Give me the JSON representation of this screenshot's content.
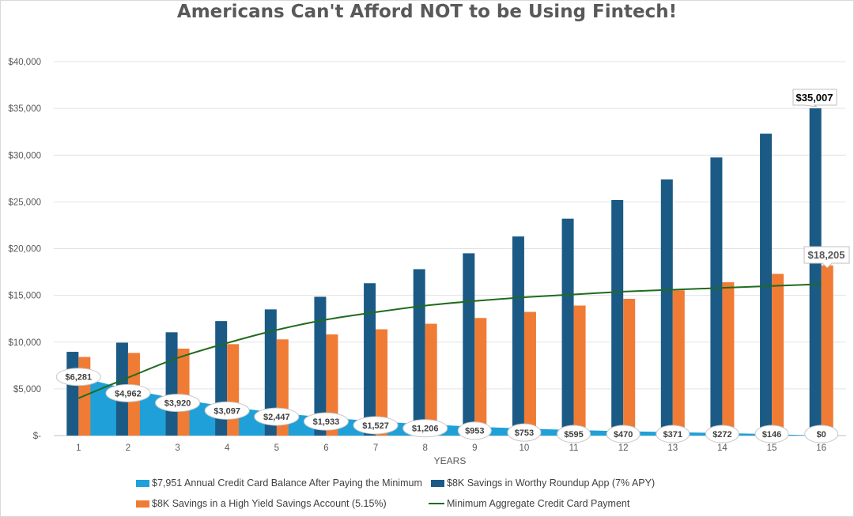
{
  "chart_data": {
    "type": "bar",
    "title": "Americans Can't Afford NOT to be Using Fintech!",
    "xlabel": "YEARS",
    "ylabel": "",
    "ylim": [
      0,
      40000
    ],
    "y_ticks": [
      "$-",
      "$5,000",
      "$10,000",
      "$15,000",
      "$20,000",
      "$25,000",
      "$30,000",
      "$35,000",
      "$40,000"
    ],
    "grid": true,
    "legend_position": "bottom",
    "categories": [
      "1",
      "2",
      "3",
      "4",
      "5",
      "6",
      "7",
      "8",
      "9",
      "10",
      "11",
      "12",
      "13",
      "14",
      "15",
      "16"
    ],
    "series": [
      {
        "name": "$7,951 Annual Credit Card Balance After Paying the Minimum",
        "kind": "area",
        "color": "#1fa0d8",
        "values": [
          6281,
          4962,
          3920,
          3097,
          2447,
          1933,
          1527,
          1206,
          953,
          753,
          595,
          470,
          371,
          272,
          146,
          0
        ],
        "data_labels": [
          "$6,281",
          "$4,962",
          "$3,920",
          "$3,097",
          "$2,447",
          "$1,933",
          "$1,527",
          "$1,206",
          "$953",
          "$753",
          "$595",
          "$470",
          "$371",
          "$272",
          "$146",
          "$0"
        ]
      },
      {
        "name": "$8K Savings in Worthy Roundup App (7% APY)",
        "kind": "bar",
        "color": "#1b5a85",
        "values": [
          8960,
          9940,
          11050,
          12250,
          13500,
          14850,
          16300,
          17800,
          19500,
          21300,
          23200,
          25200,
          27400,
          29750,
          32300,
          35007
        ],
        "end_label": "$35,007"
      },
      {
        "name": "$8K Savings in a High Yield Savings Account (5.15%)",
        "kind": "bar",
        "color": "#f07b35",
        "values": [
          8410,
          8840,
          9300,
          9780,
          10290,
          10820,
          11370,
          11960,
          12580,
          13230,
          13910,
          14630,
          15540,
          16400,
          17300,
          18205
        ],
        "end_label": "$18,205"
      },
      {
        "name": "Minimum Aggregate Credit Card Payment",
        "kind": "line",
        "color": "#1f6b1f",
        "values": [
          4000,
          6200,
          8300,
          9900,
          11300,
          12400,
          13200,
          13900,
          14400,
          14800,
          15100,
          15400,
          15600,
          15800,
          16000,
          16200
        ]
      }
    ]
  }
}
